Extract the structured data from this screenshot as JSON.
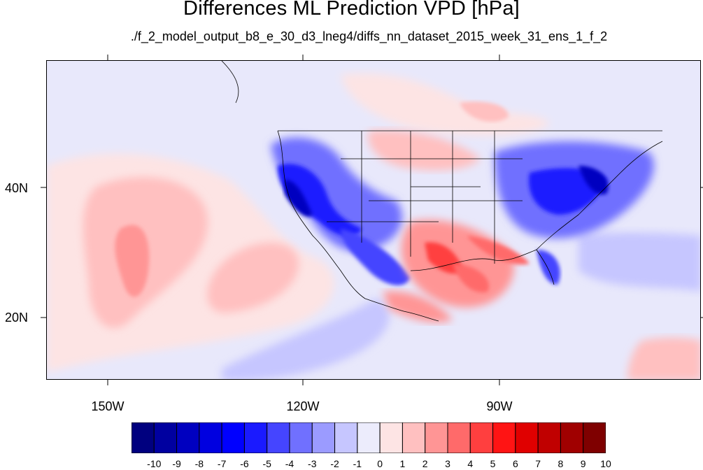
{
  "title": "Differences ML Prediction VPD [hPa]",
  "subtitle": "./f_2_model_output_b8_e_30_d3_lneg4/diffs_nn_dataset_2015_week_31_ens_1_f_2",
  "lat_labels": [
    "40N",
    "20N"
  ],
  "lon_labels": [
    "150W",
    "120W",
    "90W"
  ],
  "colorbar": {
    "labels": [
      "-10",
      "-9",
      "-8",
      "-7",
      "-6",
      "-5",
      "-4",
      "-3",
      "-2",
      "-1",
      "0",
      "1",
      "2",
      "3",
      "4",
      "5",
      "6",
      "7",
      "8",
      "9",
      "10"
    ],
    "colors": [
      "#00007f",
      "#0000a0",
      "#0000c0",
      "#0000e0",
      "#0000ff",
      "#1a1aff",
      "#4545ff",
      "#7070ff",
      "#9b9bff",
      "#c6c6ff",
      "#ececfc",
      "#fde4e4",
      "#ffc0c0",
      "#ff9595",
      "#ff6a6a",
      "#ff3f3f",
      "#ff1414",
      "#e00000",
      "#c00000",
      "#a00000",
      "#7f0000"
    ]
  }
}
